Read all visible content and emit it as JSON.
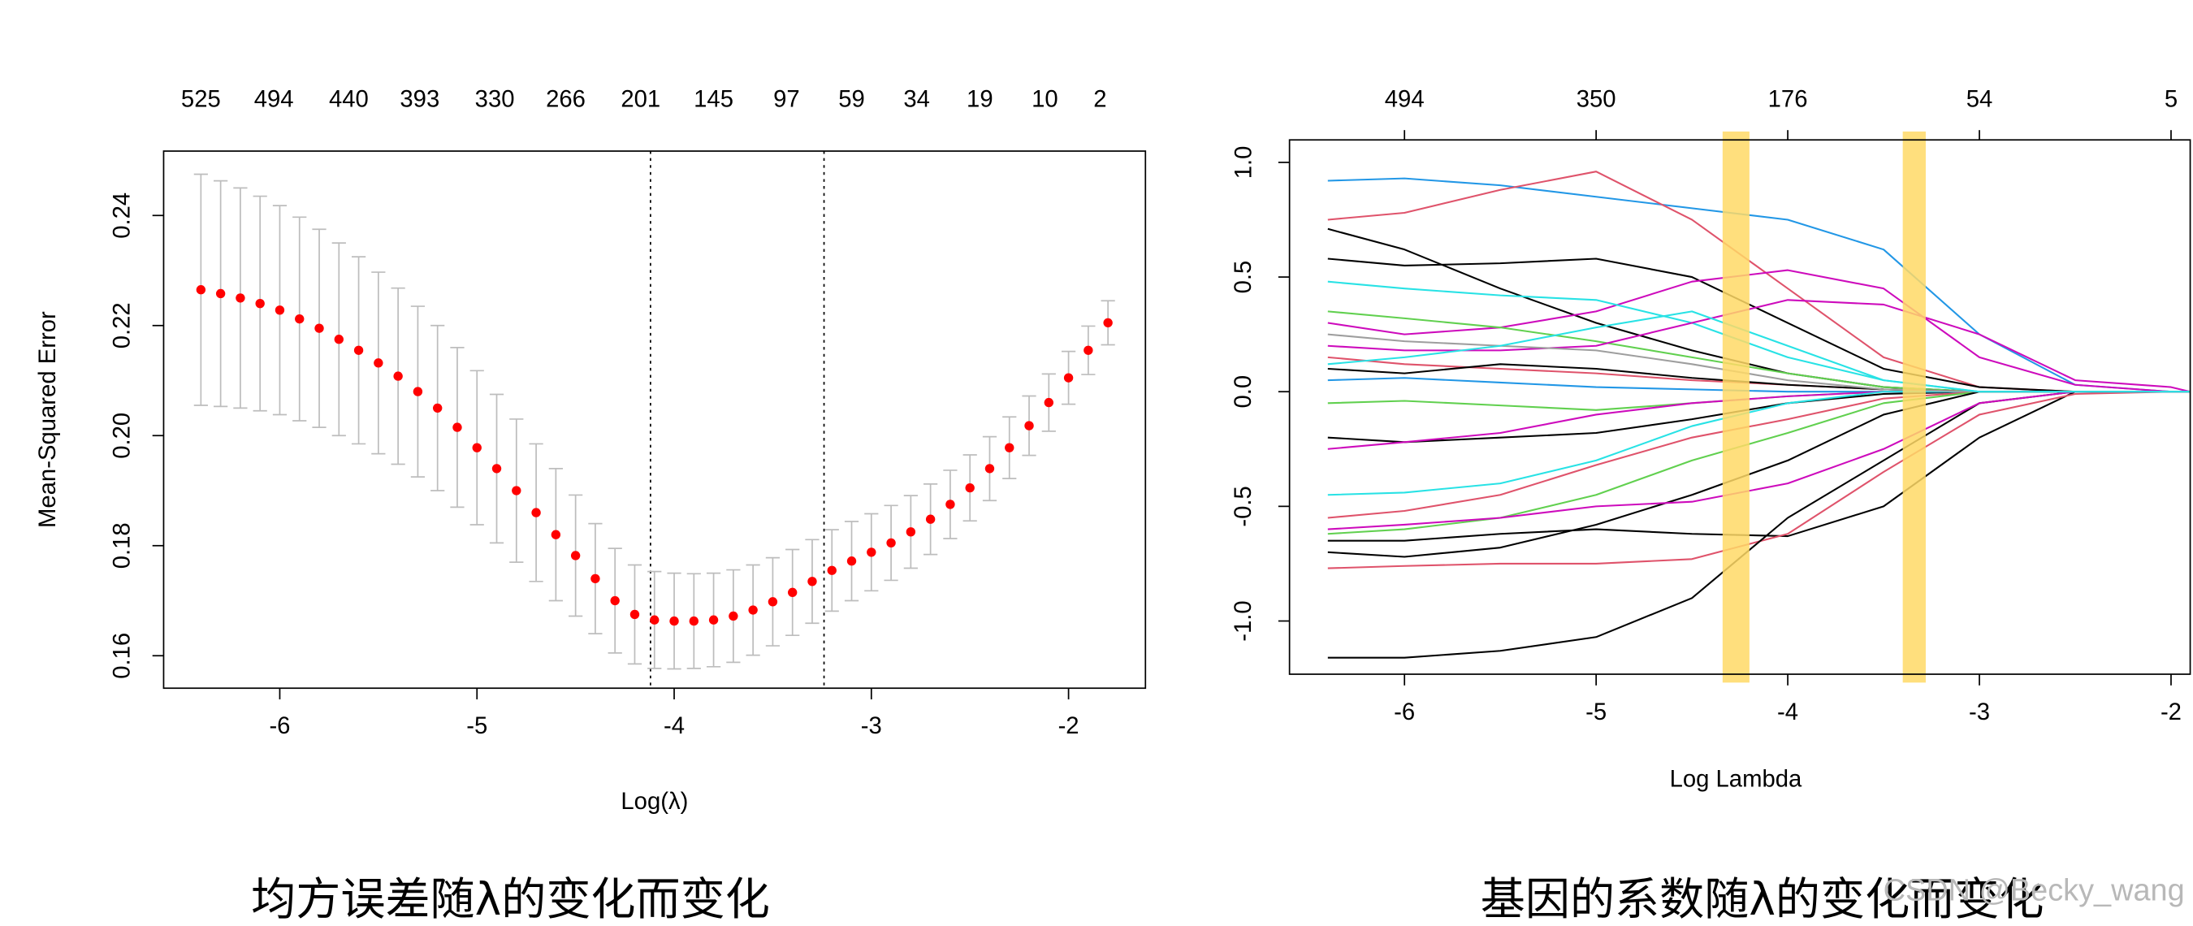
{
  "chart_data": [
    {
      "type": "errorbar",
      "caption": "均方误差随λ的变化而变化",
      "xlabel": "Log(λ)",
      "ylabel": "Mean-Squared Error",
      "color": "#ff0000",
      "error_color": "#bdbdbd",
      "top_axis": false,
      "xlim": [
        -6.589,
        -1.61
      ],
      "ylim": [
        0.1541,
        0.2517
      ],
      "xticks": [
        -6,
        -5,
        -4,
        -3,
        -2
      ],
      "yticks": [
        0.16,
        0.18,
        {
          "value": 0.2,
          "label": "0.20"
        },
        0.22,
        0.24
      ],
      "top_ticks": [
        {
          "value": -6.4,
          "label": "525"
        },
        {
          "value": -6.03,
          "label": "494"
        },
        {
          "value": -5.65,
          "label": "440"
        },
        {
          "value": -5.29,
          "label": "393"
        },
        {
          "value": -4.91,
          "label": "330"
        },
        {
          "value": -4.55,
          "label": "266"
        },
        {
          "value": -4.17,
          "label": "201"
        },
        {
          "value": -3.8,
          "label": "145"
        },
        {
          "value": -3.43,
          "label": "97"
        },
        {
          "value": -3.1,
          "label": "59"
        },
        {
          "value": -2.77,
          "label": "34"
        },
        {
          "value": -2.45,
          "label": "19"
        },
        {
          "value": -2.12,
          "label": "10"
        },
        {
          "value": -1.84,
          "label": "2"
        }
      ],
      "vlines": [
        -4.12,
        -3.24
      ],
      "x": [
        -6.4,
        -6.3,
        -6.2,
        -6.1,
        -6.0,
        -5.9,
        -5.8,
        -5.7,
        -5.6,
        -5.5,
        -5.4,
        -5.3,
        -5.2,
        -5.1,
        -5.0,
        -4.9,
        -4.8,
        -4.7,
        -4.6,
        -4.5,
        -4.4,
        -4.3,
        -4.2,
        -4.1,
        -4.0,
        -3.9,
        -3.8,
        -3.7,
        -3.6,
        -3.5,
        -3.4,
        -3.3,
        -3.2,
        -3.1,
        -3.0,
        -2.9,
        -2.8,
        -2.7,
        -2.6,
        -2.5,
        -2.4,
        -2.3,
        -2.2,
        -2.1,
        -2.0,
        -1.9,
        -1.8
      ],
      "values": [
        0.2265,
        0.2258,
        0.225,
        0.224,
        0.2228,
        0.2212,
        0.2195,
        0.2175,
        0.2155,
        0.2132,
        0.2108,
        0.208,
        0.205,
        0.2015,
        0.1978,
        0.194,
        0.19,
        0.186,
        0.182,
        0.1782,
        0.174,
        0.17,
        0.1675,
        0.1665,
        0.1663,
        0.1663,
        0.1665,
        0.1672,
        0.1683,
        0.1698,
        0.1715,
        0.1735,
        0.1755,
        0.1772,
        0.1788,
        0.1805,
        0.1825,
        0.1848,
        0.1875,
        0.1905,
        0.194,
        0.1978,
        0.2018,
        0.206,
        0.2105,
        0.2155,
        0.2205
      ],
      "errors": [
        0.021,
        0.0205,
        0.02,
        0.0195,
        0.019,
        0.0185,
        0.018,
        0.0175,
        0.017,
        0.0165,
        0.016,
        0.0155,
        0.015,
        0.0145,
        0.014,
        0.0135,
        0.013,
        0.0125,
        0.012,
        0.011,
        0.01,
        0.0095,
        0.009,
        0.0088,
        0.0087,
        0.0086,
        0.0085,
        0.0084,
        0.0082,
        0.008,
        0.0078,
        0.0076,
        0.0074,
        0.0072,
        0.007,
        0.0068,
        0.0066,
        0.0064,
        0.0062,
        0.006,
        0.0058,
        0.0056,
        0.0054,
        0.0052,
        0.0048,
        0.0044,
        0.004
      ]
    },
    {
      "type": "line",
      "caption": "基因的系数随λ的变化而变化",
      "xlabel": "Log Lambda",
      "watermark": "CSDN @Becky_wang",
      "top_axis": true,
      "xlim": [
        -6.6,
        -1.9
      ],
      "ylim": [
        -1.232,
        1.098
      ],
      "xticks": [
        -6,
        -5,
        -4,
        -3,
        -2
      ],
      "yticks": [
        {
          "value": -1,
          "label": "-1.0"
        },
        -0.5,
        {
          "value": 0,
          "label": "0.0"
        },
        0.5,
        {
          "value": 1,
          "label": "1.0"
        }
      ],
      "top_ticks": [
        {
          "value": -6,
          "label": "494"
        },
        {
          "value": -5,
          "label": "350"
        },
        {
          "value": -4,
          "label": "176"
        },
        {
          "value": -3,
          "label": "54"
        },
        {
          "value": -2,
          "label": "5"
        }
      ],
      "highlights": [
        [
          -4.34,
          -4.2
        ],
        [
          -3.4,
          -3.28
        ]
      ],
      "highlight_color": "#ffd966",
      "x": [
        -6.4,
        -6,
        -5.5,
        -5,
        -4.5,
        -4,
        -3.5,
        -3,
        -2.5,
        -2,
        -1.9
      ],
      "series": [
        {
          "color": "#2297e6",
          "values": [
            0.92,
            0.93,
            0.9,
            0.85,
            0.8,
            0.75,
            0.62,
            0.25,
            0.03,
            0,
            0
          ]
        },
        {
          "color": "#df536b",
          "values": [
            0.75,
            0.78,
            0.88,
            0.96,
            0.75,
            0.45,
            0.15,
            0.02,
            0,
            0,
            0
          ]
        },
        {
          "color": "#000000",
          "values": [
            0.71,
            0.62,
            0.45,
            0.3,
            0.18,
            0.08,
            0.02,
            0,
            0,
            0,
            0
          ]
        },
        {
          "color": "#000000",
          "values": [
            0.58,
            0.55,
            0.56,
            0.58,
            0.5,
            0.3,
            0.1,
            0.02,
            0,
            0,
            0
          ]
        },
        {
          "color": "#cd0bbc",
          "values": [
            0.3,
            0.25,
            0.28,
            0.35,
            0.48,
            0.53,
            0.45,
            0.15,
            0.03,
            0,
            0
          ]
        },
        {
          "color": "#28e2e5",
          "values": [
            0.48,
            0.45,
            0.42,
            0.4,
            0.3,
            0.15,
            0.05,
            0,
            0,
            0,
            0
          ]
        },
        {
          "color": "#61d04f",
          "values": [
            0.35,
            0.32,
            0.28,
            0.22,
            0.15,
            0.08,
            0.02,
            0,
            0,
            0,
            0
          ]
        },
        {
          "color": "#cd0bbc",
          "values": [
            0.2,
            0.18,
            0.18,
            0.2,
            0.3,
            0.4,
            0.38,
            0.25,
            0.05,
            0.02,
            0
          ]
        },
        {
          "color": "#df536b",
          "values": [
            0.15,
            0.12,
            0.1,
            0.08,
            0.05,
            0.03,
            0.01,
            0,
            0,
            0,
            0
          ]
        },
        {
          "color": "#000000",
          "values": [
            0.1,
            0.08,
            0.12,
            0.1,
            0.06,
            0.03,
            0.01,
            0,
            0,
            0,
            0
          ]
        },
        {
          "color": "#2297e6",
          "values": [
            0.05,
            0.06,
            0.04,
            0.02,
            0.01,
            0,
            0,
            0,
            0,
            0,
            0
          ]
        },
        {
          "color": "#61d04f",
          "values": [
            -0.05,
            -0.04,
            -0.06,
            -0.08,
            -0.05,
            -0.02,
            0,
            0,
            0,
            0,
            0
          ]
        },
        {
          "color": "#000000",
          "values": [
            -0.2,
            -0.22,
            -0.2,
            -0.18,
            -0.12,
            -0.05,
            -0.01,
            0,
            0,
            0,
            0
          ]
        },
        {
          "color": "#cd0bbc",
          "values": [
            -0.25,
            -0.22,
            -0.18,
            -0.1,
            -0.05,
            -0.02,
            0,
            0,
            0,
            0,
            0
          ]
        },
        {
          "color": "#28e2e5",
          "values": [
            -0.45,
            -0.44,
            -0.4,
            -0.3,
            -0.15,
            -0.05,
            0,
            0,
            0,
            0,
            0
          ]
        },
        {
          "color": "#df536b",
          "values": [
            -0.55,
            -0.52,
            -0.45,
            -0.32,
            -0.2,
            -0.12,
            -0.03,
            0,
            0,
            0,
            0
          ]
        },
        {
          "color": "#61d04f",
          "values": [
            -0.62,
            -0.6,
            -0.55,
            -0.45,
            -0.3,
            -0.18,
            -0.05,
            0,
            0,
            0,
            0
          ]
        },
        {
          "color": "#000000",
          "values": [
            -0.65,
            -0.65,
            -0.62,
            -0.6,
            -0.62,
            -0.63,
            -0.5,
            -0.2,
            0,
            0,
            0
          ]
        },
        {
          "color": "#000000",
          "values": [
            -0.7,
            -0.72,
            -0.68,
            -0.58,
            -0.45,
            -0.3,
            -0.1,
            0,
            0,
            0,
            0
          ]
        },
        {
          "color": "#df536b",
          "values": [
            -0.77,
            -0.76,
            -0.75,
            -0.75,
            -0.73,
            -0.62,
            -0.35,
            -0.1,
            -0.01,
            0,
            0
          ]
        },
        {
          "color": "#000000",
          "values": [
            -1.16,
            -1.16,
            -1.13,
            -1.07,
            -0.9,
            -0.55,
            -0.3,
            -0.05,
            0,
            0,
            0
          ]
        },
        {
          "color": "#cd0bbc",
          "values": [
            -0.6,
            -0.58,
            -0.55,
            -0.5,
            -0.48,
            -0.4,
            -0.25,
            -0.05,
            0,
            0,
            0
          ]
        },
        {
          "color": "#9e9e9e",
          "values": [
            0.25,
            0.22,
            0.2,
            0.18,
            0.12,
            0.05,
            0.01,
            0,
            0,
            0,
            0
          ]
        },
        {
          "color": "#28e2e5",
          "values": [
            0.12,
            0.15,
            0.2,
            0.28,
            0.35,
            0.2,
            0.05,
            0,
            0,
            0,
            0
          ]
        }
      ]
    }
  ]
}
